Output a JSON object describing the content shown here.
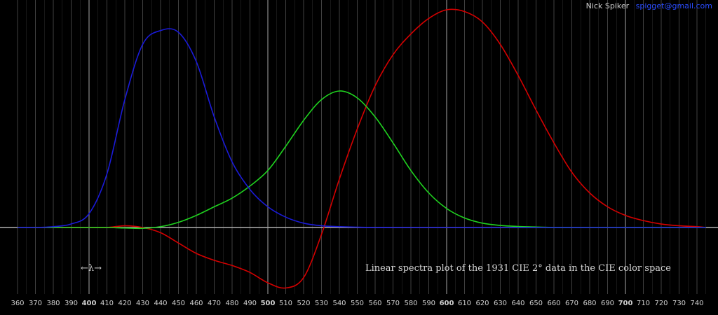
{
  "credits": {
    "author": "Nick Spiker",
    "email": "spigget@gmail.com"
  },
  "chart_data": {
    "type": "line",
    "title": "Linear spectra plot of the 1931 CIE 2° data in the CIE color space",
    "lambda_label": "←λ→",
    "xlabel": "",
    "ylabel": "",
    "xlim": [
      360,
      745
    ],
    "ylim": [
      -0.42,
      1.28
    ],
    "grid": true,
    "x_ticks": [
      360,
      370,
      380,
      390,
      400,
      410,
      420,
      430,
      440,
      450,
      460,
      470,
      480,
      490,
      500,
      510,
      520,
      530,
      540,
      550,
      560,
      570,
      580,
      590,
      600,
      610,
      620,
      630,
      640,
      650,
      660,
      670,
      680,
      690,
      700,
      710,
      720,
      730,
      740
    ],
    "bold_ticks": [
      400,
      500,
      600,
      700
    ],
    "colors": {
      "red": "#d40000",
      "green": "#1fd21f",
      "blue": "#1a1ad8",
      "axis": "#b0b0b0",
      "grid_minor": "#5a5a5a",
      "grid_major": "#9a9a9a",
      "text": "#cfcfcf"
    },
    "x": [
      360,
      370,
      380,
      390,
      400,
      410,
      420,
      430,
      440,
      450,
      460,
      470,
      480,
      490,
      500,
      510,
      520,
      530,
      540,
      550,
      560,
      570,
      580,
      590,
      600,
      610,
      620,
      630,
      640,
      650,
      660,
      670,
      680,
      690,
      700,
      710,
      720,
      730,
      740,
      745
    ],
    "series": [
      {
        "color": "red",
        "values": [
          0.0,
          0.0,
          0.0,
          0.0,
          0.0,
          0.0,
          0.01,
          0.0,
          -0.03,
          -0.09,
          -0.15,
          -0.19,
          -0.22,
          -0.26,
          -0.32,
          -0.35,
          -0.29,
          -0.04,
          0.28,
          0.57,
          0.82,
          1.0,
          1.12,
          1.21,
          1.26,
          1.25,
          1.19,
          1.06,
          0.88,
          0.68,
          0.49,
          0.32,
          0.2,
          0.12,
          0.07,
          0.04,
          0.02,
          0.01,
          0.005,
          0.0
        ]
      },
      {
        "color": "green",
        "values": [
          0.0,
          0.0,
          0.0,
          0.0,
          0.0,
          0.0,
          -0.003,
          -0.005,
          0.005,
          0.03,
          0.07,
          0.12,
          0.17,
          0.24,
          0.33,
          0.47,
          0.62,
          0.74,
          0.79,
          0.75,
          0.64,
          0.49,
          0.33,
          0.2,
          0.11,
          0.055,
          0.025,
          0.012,
          0.006,
          0.003,
          0.0,
          0.0,
          0.0,
          0.0,
          0.0,
          0.0,
          0.0,
          0.0,
          0.0,
          0.0
        ]
      },
      {
        "color": "blue",
        "values": [
          0.0,
          0.0,
          0.005,
          0.02,
          0.08,
          0.31,
          0.74,
          1.06,
          1.14,
          1.13,
          0.96,
          0.64,
          0.38,
          0.22,
          0.12,
          0.06,
          0.025,
          0.01,
          0.005,
          0.002,
          0.0,
          0.0,
          0.0,
          0.0,
          0.0,
          0.0,
          0.0,
          0.0,
          0.0,
          0.0,
          0.0,
          0.0,
          0.0,
          0.0,
          0.0,
          0.0,
          0.0,
          0.0,
          0.0,
          0.0
        ]
      }
    ]
  }
}
